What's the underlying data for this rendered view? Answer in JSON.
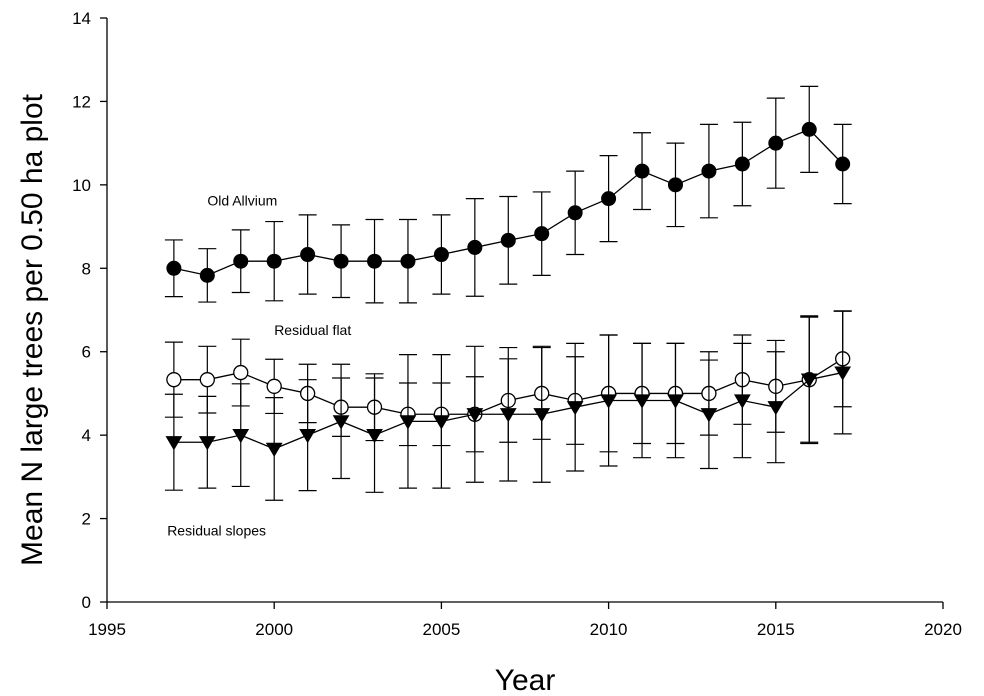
{
  "chart_data": {
    "type": "line",
    "xlabel": "Year",
    "ylabel": "Mean N large trees per 0.50 ha plot",
    "xlim": [
      1995,
      2020
    ],
    "ylim": [
      0,
      14
    ],
    "xticks": [
      1995,
      2000,
      2005,
      2010,
      2015,
      2020
    ],
    "yticks": [
      0,
      2,
      4,
      6,
      8,
      10,
      12,
      14
    ],
    "grid": false,
    "legend": "none",
    "annotations": [
      {
        "text": "Old Allvium",
        "x": 1998.0,
        "y": 9.5
      },
      {
        "text": "Residual flat",
        "x": 2000.0,
        "y": 6.4
      },
      {
        "text": "Residual slopes",
        "x": 1996.8,
        "y": 1.6
      }
    ],
    "x": [
      1997,
      1998,
      1999,
      2000,
      2001,
      2002,
      2003,
      2004,
      2005,
      2006,
      2007,
      2008,
      2009,
      2010,
      2011,
      2012,
      2013,
      2014,
      2015,
      2016,
      2017
    ],
    "series": [
      {
        "marker": "filled-circle",
        "values": [
          8.0,
          7.83,
          8.17,
          8.17,
          8.33,
          8.17,
          8.17,
          8.17,
          8.33,
          8.5,
          8.67,
          8.83,
          9.33,
          9.67,
          10.33,
          10.0,
          10.33,
          10.5,
          11.0,
          11.33,
          10.5
        ],
        "errors": [
          0.68,
          0.64,
          0.75,
          0.95,
          0.95,
          0.87,
          1.0,
          1.0,
          0.95,
          1.17,
          1.05,
          1.0,
          1.0,
          1.03,
          0.92,
          1.0,
          1.12,
          1.0,
          1.08,
          1.03,
          0.95
        ]
      },
      {
        "marker": "open-circle",
        "values": [
          5.33,
          5.33,
          5.5,
          5.17,
          5.0,
          4.67,
          4.67,
          4.5,
          4.5,
          4.5,
          4.83,
          5.0,
          4.83,
          5.0,
          5.0,
          5.0,
          5.0,
          5.33,
          5.17,
          5.33,
          5.83
        ],
        "errors": [
          0.9,
          0.8,
          0.8,
          0.65,
          0.7,
          0.7,
          0.8,
          0.75,
          0.75,
          0.9,
          1.0,
          1.1,
          1.05,
          1.4,
          1.2,
          1.2,
          1.0,
          1.07,
          1.1,
          1.5,
          1.15
        ]
      },
      {
        "marker": "filled-triangle-down",
        "values": [
          3.83,
          3.83,
          4.0,
          3.67,
          4.0,
          4.33,
          4.0,
          4.33,
          4.33,
          4.5,
          4.5,
          4.5,
          4.67,
          4.83,
          4.83,
          4.83,
          4.5,
          4.83,
          4.67,
          5.33,
          5.5
        ],
        "errors": [
          1.15,
          1.1,
          1.23,
          1.23,
          1.33,
          1.37,
          1.37,
          1.6,
          1.6,
          1.63,
          1.6,
          1.63,
          1.53,
          1.57,
          1.37,
          1.37,
          1.3,
          1.37,
          1.33,
          1.53,
          1.47
        ]
      }
    ]
  }
}
